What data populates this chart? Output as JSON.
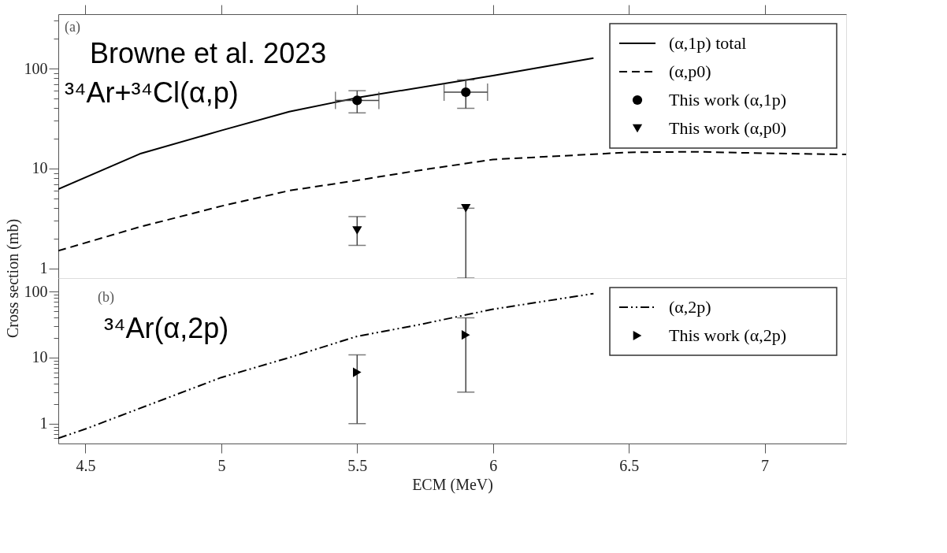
{
  "chart_data": [
    {
      "type": "line",
      "ylabel": "Cross section (mb)",
      "xlim": [
        4.4,
        7.3
      ],
      "ylim": [
        0.8,
        350
      ],
      "xticks": [
        4.5,
        5,
        5.5,
        6,
        6.5,
        7
      ],
      "yticks": [
        1,
        {
          "value": 2,
          "label": null
        },
        {
          "value": 3,
          "label": null
        },
        {
          "value": 4,
          "label": null
        },
        {
          "value": 5,
          "label": null
        },
        {
          "value": 6,
          "label": null
        },
        {
          "value": 7,
          "label": null
        },
        {
          "value": 8,
          "label": null
        },
        {
          "value": 9,
          "label": null
        },
        10,
        {
          "value": 20,
          "label": null
        },
        {
          "value": 30,
          "label": null
        },
        {
          "value": 40,
          "label": null
        },
        {
          "value": 50,
          "label": null
        },
        {
          "value": 60,
          "label": null
        },
        {
          "value": 70,
          "label": null
        },
        {
          "value": 80,
          "label": null
        },
        {
          "value": 90,
          "label": null
        },
        100,
        {
          "value": 200,
          "label": null
        },
        {
          "value": 300,
          "label": null
        }
      ],
      "log": true,
      "grid": false,
      "legend": "top right",
      "tick_labels": "y",
      "annotations": [
        "(a)",
        "Browne et al. 2023",
        "³⁴Ar+³⁴Cl(α,p)"
      ],
      "series": [
        {
          "name": "(α,1p) total",
          "type": "line",
          "line_style": "solid",
          "color": "#000000",
          "x": [
            4.4,
            4.7,
            5.0,
            5.25,
            5.5,
            6.0,
            6.37
          ],
          "values": [
            6.2,
            14,
            24,
            37,
            51,
            85,
            127
          ]
        },
        {
          "name": "(α,p0)",
          "type": "line",
          "line_style": "dashed",
          "color": "#000000",
          "x": [
            4.4,
            4.7,
            5.0,
            5.25,
            5.5,
            5.72,
            6.0,
            6.5,
            6.75,
            7.0,
            7.3
          ],
          "values": [
            1.5,
            2.6,
            4.2,
            6.0,
            7.6,
            9.5,
            12.3,
            14.5,
            14.7,
            14.2,
            13.8
          ]
        },
        {
          "name": "This work (α,1p)",
          "type": "scatter",
          "marker": "circle",
          "color": "#000000",
          "x": [
            5.5,
            5.9
          ],
          "values": [
            48,
            58
          ],
          "errors": [
            [
              36,
              60
            ],
            [
              40,
              77
            ]
          ],
          "xerrors": [
            0.08,
            0.08
          ]
        },
        {
          "name": "This work (α,p0)",
          "type": "scatter",
          "marker": "triangle-down",
          "color": "#000000",
          "x": [
            5.5,
            5.9
          ],
          "values": [
            2.4,
            4.0
          ],
          "errors": [
            [
              1.7,
              3.3
            ],
            [
              0.8,
              4.0
            ]
          ]
        }
      ]
    },
    {
      "type": "line",
      "xlabel": "ECM (MeV)",
      "xlim": [
        4.4,
        7.3
      ],
      "ylim": [
        0.5,
        160
      ],
      "xticks": [
        4.5,
        5,
        5.5,
        6,
        6.5,
        7
      ],
      "yticks": [
        {
          "value": 0.6,
          "label": null
        },
        {
          "value": 0.7,
          "label": null
        },
        {
          "value": 0.8,
          "label": null
        },
        {
          "value": 0.9,
          "label": null
        },
        1,
        {
          "value": 2,
          "label": null
        },
        {
          "value": 3,
          "label": null
        },
        {
          "value": 4,
          "label": null
        },
        {
          "value": 5,
          "label": null
        },
        {
          "value": 6,
          "label": null
        },
        {
          "value": 7,
          "label": null
        },
        {
          "value": 8,
          "label": null
        },
        {
          "value": 9,
          "label": null
        },
        10,
        {
          "value": 20,
          "label": null
        },
        {
          "value": 30,
          "label": null
        },
        {
          "value": 40,
          "label": null
        },
        {
          "value": 50,
          "label": null
        },
        {
          "value": 60,
          "label": null
        },
        {
          "value": 70,
          "label": null
        },
        {
          "value": 80,
          "label": null
        },
        {
          "value": 90,
          "label": null
        },
        100
      ],
      "log": true,
      "grid": false,
      "legend": "top right",
      "annotations": [
        "(b)",
        "³⁴Ar(α,2p)"
      ],
      "series": [
        {
          "name": "(α,2p)",
          "type": "line",
          "line_style": "dashdot",
          "color": "#000000",
          "x": [
            4.4,
            4.5,
            5.0,
            5.25,
            5.5,
            5.72,
            6.0,
            6.37
          ],
          "values": [
            0.6,
            0.83,
            5.0,
            10,
            21,
            31,
            54,
            93
          ]
        },
        {
          "name": "This work (α,2p)",
          "type": "scatter",
          "marker": "triangle-right",
          "color": "#000000",
          "x": [
            5.5,
            5.9
          ],
          "values": [
            6.0,
            22
          ],
          "errors": [
            [
              1,
              11
            ],
            [
              3,
              40
            ]
          ]
        }
      ]
    }
  ]
}
